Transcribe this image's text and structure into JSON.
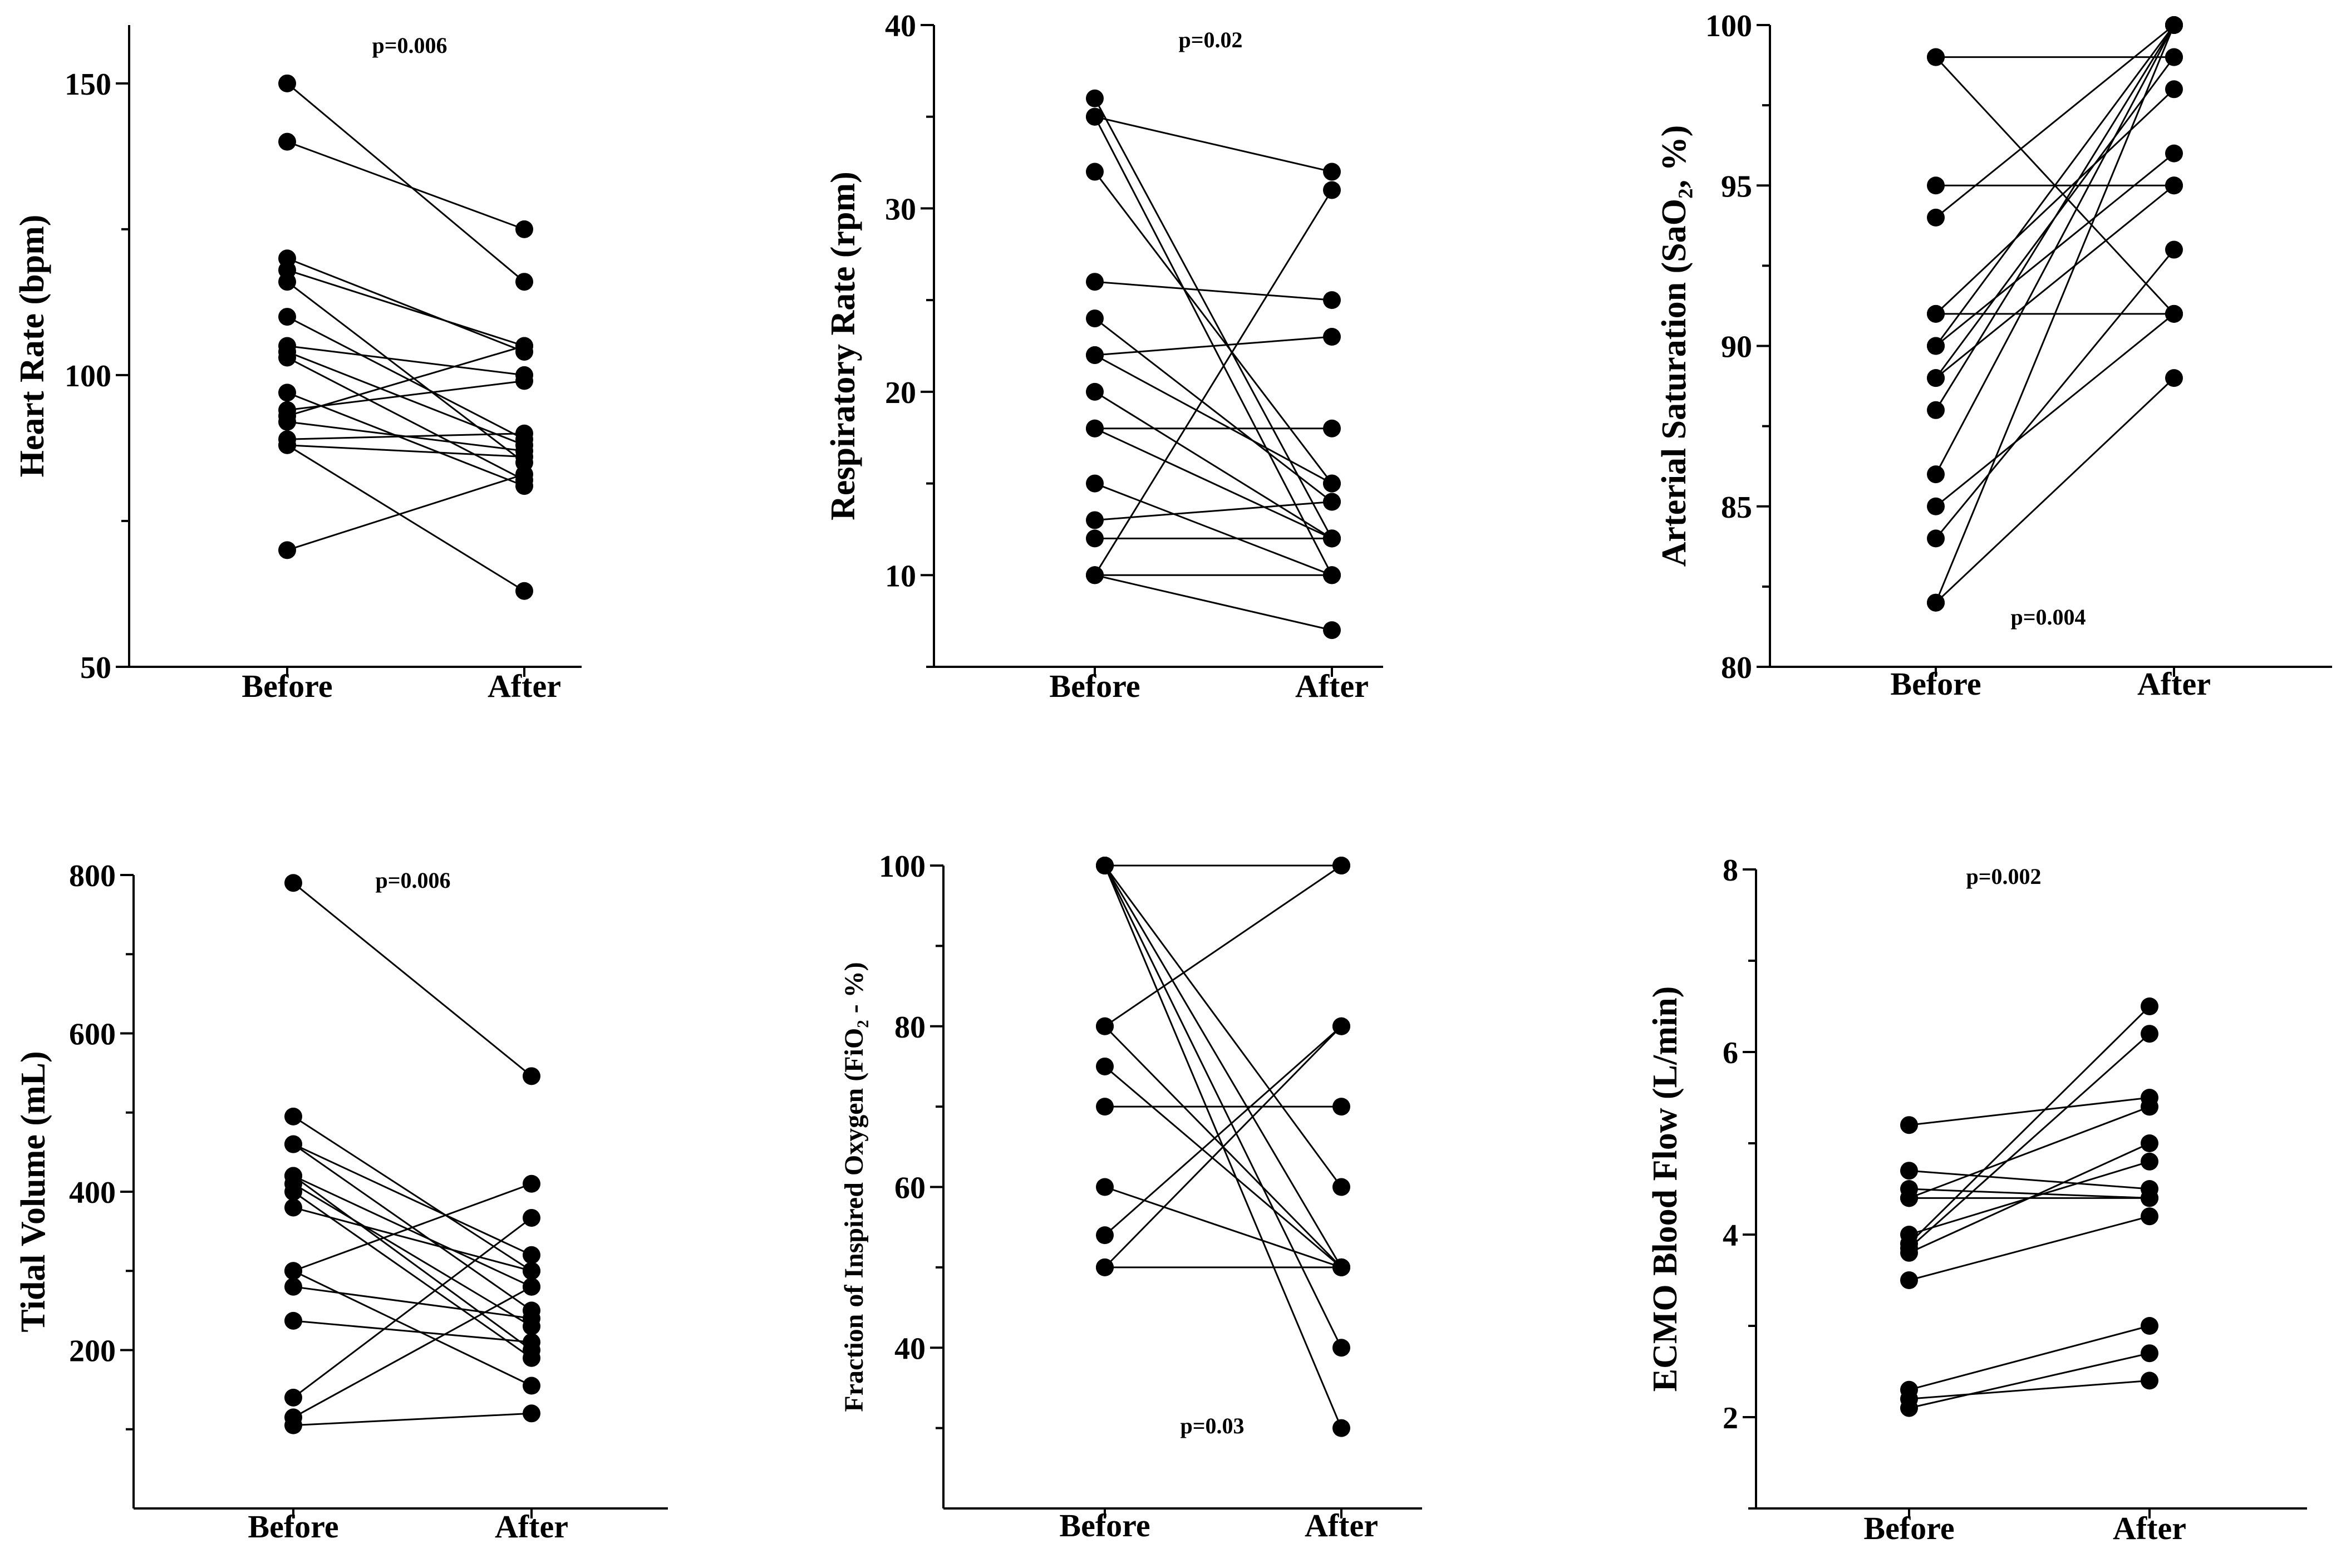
{
  "chart_data": [
    {
      "type": "line",
      "ylabel": "Heart Rate (bpm)",
      "categories": [
        "Before",
        "After"
      ],
      "ylim": [
        50,
        160
      ],
      "yticks": [
        50,
        100,
        150
      ],
      "p_value": "p=0.006",
      "p_pos": "top",
      "pairs": [
        [
          150,
          116
        ],
        [
          140,
          125
        ],
        [
          120,
          104
        ],
        [
          118,
          105
        ],
        [
          116,
          85
        ],
        [
          110,
          89
        ],
        [
          105,
          100
        ],
        [
          104,
          88
        ],
        [
          103,
          82
        ],
        [
          97,
          81
        ],
        [
          94,
          99
        ],
        [
          93,
          105
        ],
        [
          92,
          87
        ],
        [
          89,
          90
        ],
        [
          88,
          86
        ],
        [
          88,
          63
        ],
        [
          70,
          83
        ]
      ]
    },
    {
      "type": "line",
      "ylabel": "Respiratory Rate (rpm)",
      "categories": [
        "Before",
        "After"
      ],
      "ylim": [
        5,
        40
      ],
      "yticks": [
        10,
        20,
        30,
        40
      ],
      "p_value": "p=0.02",
      "p_pos": "top",
      "pairs": [
        [
          36,
          12
        ],
        [
          35,
          32
        ],
        [
          35,
          10
        ],
        [
          32,
          15
        ],
        [
          26,
          25
        ],
        [
          24,
          14
        ],
        [
          22,
          23
        ],
        [
          22,
          15
        ],
        [
          20,
          12
        ],
        [
          18,
          18
        ],
        [
          18,
          12
        ],
        [
          15,
          10
        ],
        [
          13,
          14
        ],
        [
          12,
          12
        ],
        [
          10,
          31
        ],
        [
          10,
          10
        ],
        [
          10,
          7
        ]
      ]
    },
    {
      "type": "line",
      "ylabel": "Arterial Saturation (SaO₂, %)",
      "categories": [
        "Before",
        "After"
      ],
      "ylim": [
        80,
        100
      ],
      "yticks": [
        80,
        85,
        90,
        95,
        100
      ],
      "p_value": "p=0.004",
      "p_pos": "bottom",
      "pairs": [
        [
          99,
          99
        ],
        [
          99,
          91
        ],
        [
          95,
          95
        ],
        [
          94,
          100
        ],
        [
          91,
          91
        ],
        [
          91,
          98
        ],
        [
          90,
          96
        ],
        [
          90,
          100
        ],
        [
          89,
          95
        ],
        [
          89,
          99
        ],
        [
          88,
          100
        ],
        [
          86,
          100
        ],
        [
          85,
          91
        ],
        [
          84,
          93
        ],
        [
          82,
          89
        ],
        [
          82,
          100
        ]
      ]
    },
    {
      "type": "line",
      "ylabel": "Tidal Volume (mL)",
      "categories": [
        "Before",
        "After"
      ],
      "ylim": [
        0,
        800
      ],
      "yticks": [
        200,
        400,
        600,
        800
      ],
      "p_value": "p=0.006",
      "p_pos": "top",
      "pairs": [
        [
          790,
          546
        ],
        [
          495,
          300
        ],
        [
          460,
          250
        ],
        [
          460,
          320
        ],
        [
          420,
          280
        ],
        [
          420,
          200
        ],
        [
          410,
          230
        ],
        [
          400,
          190
        ],
        [
          380,
          300
        ],
        [
          300,
          410
        ],
        [
          300,
          155
        ],
        [
          280,
          240
        ],
        [
          237,
          210
        ],
        [
          140,
          367
        ],
        [
          115,
          280
        ],
        [
          105,
          120
        ]
      ]
    },
    {
      "type": "line",
      "ylabel": "Fraction of Inspired Oxygen (FiO₂ - %)",
      "categories": [
        "Before",
        "After"
      ],
      "ylim": [
        20,
        100
      ],
      "yticks": [
        40,
        60,
        80,
        100
      ],
      "p_value": "p=0.03",
      "p_pos": "bottom",
      "pairs": [
        [
          100,
          100
        ],
        [
          100,
          60
        ],
        [
          100,
          50
        ],
        [
          100,
          40
        ],
        [
          100,
          30
        ],
        [
          80,
          100
        ],
        [
          80,
          50
        ],
        [
          75,
          50
        ],
        [
          70,
          70
        ],
        [
          60,
          50
        ],
        [
          54,
          80
        ],
        [
          50,
          80
        ],
        [
          50,
          50
        ]
      ]
    },
    {
      "type": "line",
      "ylabel": "ECMO Blood Flow (L/min)",
      "categories": [
        "Before",
        "After"
      ],
      "ylim": [
        1,
        8
      ],
      "yticks": [
        2,
        4,
        6,
        8
      ],
      "p_value": "p=0.002",
      "p_pos": "top",
      "pairs": [
        [
          5.2,
          5.5
        ],
        [
          4.7,
          4.5
        ],
        [
          4.5,
          4.4
        ],
        [
          4.4,
          5.4
        ],
        [
          4.4,
          4.4
        ],
        [
          4.0,
          4.8
        ],
        [
          3.9,
          6.5
        ],
        [
          3.85,
          6.2
        ],
        [
          3.8,
          5.0
        ],
        [
          3.5,
          4.2
        ],
        [
          2.3,
          3.0
        ],
        [
          2.2,
          2.4
        ],
        [
          2.1,
          2.7
        ]
      ]
    }
  ]
}
